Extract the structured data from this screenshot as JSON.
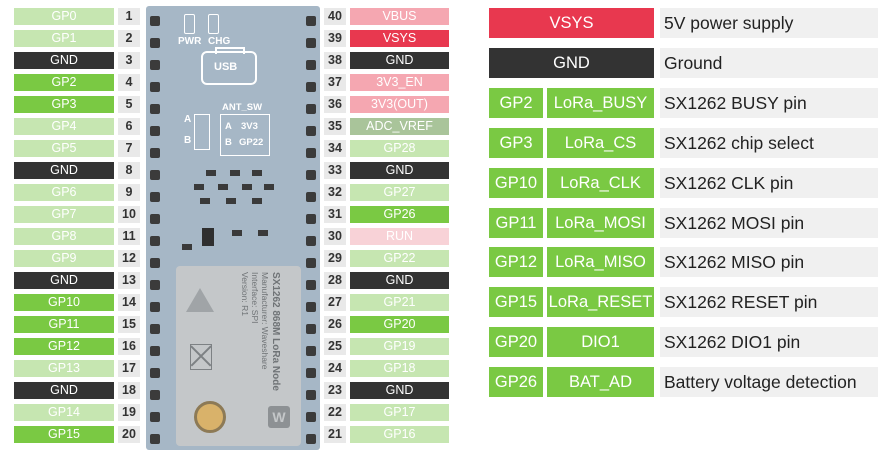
{
  "board": {
    "pwr_label": "PWR",
    "chg_label": "CHG",
    "usb_label": "USB",
    "ant_sw_label": "ANT_SW",
    "a_label": "A",
    "b_label": "B",
    "ant_a_value": "3V3",
    "ant_b_value": "GP22",
    "module_text": [
      "SX1262 868M LoRa Node",
      "Manufacturer: Waveshare",
      "Interface: SPI",
      "Version: R1"
    ]
  },
  "left_pins": [
    {
      "num": "1",
      "label": "GP0",
      "type": "gp-light"
    },
    {
      "num": "2",
      "label": "GP1",
      "type": "gp-light"
    },
    {
      "num": "3",
      "label": "GND",
      "type": "gnd"
    },
    {
      "num": "4",
      "label": "GP2",
      "type": "gp-strong"
    },
    {
      "num": "5",
      "label": "GP3",
      "type": "gp-strong"
    },
    {
      "num": "6",
      "label": "GP4",
      "type": "gp-light"
    },
    {
      "num": "7",
      "label": "GP5",
      "type": "gp-light"
    },
    {
      "num": "8",
      "label": "GND",
      "type": "gnd"
    },
    {
      "num": "9",
      "label": "GP6",
      "type": "gp-light"
    },
    {
      "num": "10",
      "label": "GP7",
      "type": "gp-light"
    },
    {
      "num": "11",
      "label": "GP8",
      "type": "gp-light"
    },
    {
      "num": "12",
      "label": "GP9",
      "type": "gp-light"
    },
    {
      "num": "13",
      "label": "GND",
      "type": "gnd"
    },
    {
      "num": "14",
      "label": "GP10",
      "type": "gp-strong"
    },
    {
      "num": "15",
      "label": "GP11",
      "type": "gp-strong"
    },
    {
      "num": "16",
      "label": "GP12",
      "type": "gp-strong"
    },
    {
      "num": "17",
      "label": "GP13",
      "type": "gp-light"
    },
    {
      "num": "18",
      "label": "GND",
      "type": "gnd"
    },
    {
      "num": "19",
      "label": "GP14",
      "type": "gp-light"
    },
    {
      "num": "20",
      "label": "GP15",
      "type": "gp-strong"
    }
  ],
  "right_pins": [
    {
      "num": "40",
      "label": "VBUS",
      "type": "pwr-light"
    },
    {
      "num": "39",
      "label": "VSYS",
      "type": "pwr"
    },
    {
      "num": "38",
      "label": "GND",
      "type": "gnd"
    },
    {
      "num": "37",
      "label": "3V3_EN",
      "type": "pwr-light"
    },
    {
      "num": "36",
      "label": "3V3(OUT)",
      "type": "pwr-light"
    },
    {
      "num": "35",
      "label": "ADC_VREF",
      "type": "adc"
    },
    {
      "num": "34",
      "label": "GP28",
      "type": "gp-light"
    },
    {
      "num": "33",
      "label": "GND",
      "type": "gnd"
    },
    {
      "num": "32",
      "label": "GP27",
      "type": "gp-light"
    },
    {
      "num": "31",
      "label": "GP26",
      "type": "gp-strong"
    },
    {
      "num": "30",
      "label": "RUN",
      "type": "pwr-pale"
    },
    {
      "num": "29",
      "label": "GP22",
      "type": "gp-light"
    },
    {
      "num": "28",
      "label": "GND",
      "type": "gnd"
    },
    {
      "num": "27",
      "label": "GP21",
      "type": "gp-light"
    },
    {
      "num": "26",
      "label": "GP20",
      "type": "gp-strong"
    },
    {
      "num": "25",
      "label": "GP19",
      "type": "gp-light"
    },
    {
      "num": "24",
      "label": "GP18",
      "type": "gp-light"
    },
    {
      "num": "23",
      "label": "GND",
      "type": "gnd"
    },
    {
      "num": "22",
      "label": "GP17",
      "type": "gp-light"
    },
    {
      "num": "21",
      "label": "GP16",
      "type": "gp-light"
    }
  ],
  "legend": [
    {
      "wide": "VSYS",
      "desc": "5V power supply",
      "type": "pwr"
    },
    {
      "wide": "GND",
      "desc": "Ground",
      "type": "gnd"
    },
    {
      "gp": "GP2",
      "func": "LoRa_BUSY",
      "desc": "SX1262 BUSY pin"
    },
    {
      "gp": "GP3",
      "func": "LoRa_CS",
      "desc": "SX1262 chip select"
    },
    {
      "gp": "GP10",
      "func": "LoRa_CLK",
      "desc": "SX1262 CLK pin"
    },
    {
      "gp": "GP11",
      "func": "LoRa_MOSI",
      "desc": "SX1262 MOSI pin"
    },
    {
      "gp": "GP12",
      "func": "LoRa_MISO",
      "desc": "SX1262 MISO pin"
    },
    {
      "gp": "GP15",
      "func": "LoRa_RESET",
      "desc": "SX1262 RESET pin"
    },
    {
      "gp": "GP20",
      "func": "DIO1",
      "desc": "SX1262 DIO1 pin"
    },
    {
      "gp": "GP26",
      "func": "BAT_AD",
      "desc": "Battery voltage detection"
    }
  ],
  "colors": {
    "gp_strong": "#7ac943",
    "gp_light": "#c6e6b1",
    "gnd": "#333333",
    "power": "#e8384f",
    "power_light": "#f5a7b1",
    "power_pale": "#f8d2d7",
    "adc": "#a9c49a",
    "board": "#a6b7c6"
  }
}
